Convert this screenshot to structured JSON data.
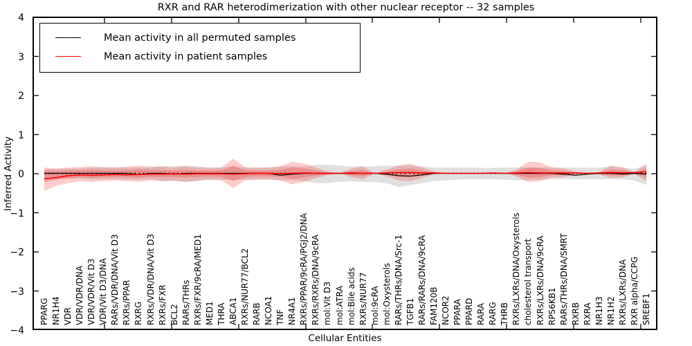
{
  "chart_data": {
    "type": "line",
    "title": "RXR and RAR heterodimerization with other nuclear receptor -- 32 samples",
    "xlabel": "Cellular Entities",
    "ylabel": "Inferred Activity",
    "ylim": [
      -4,
      4
    ],
    "ytick_labels": [
      "4",
      "3",
      "2",
      "1",
      "0",
      "−1",
      "−2",
      "−3",
      "−4"
    ],
    "grid": false,
    "legend_position": "upper left",
    "categories": [
      "PPARG",
      "NR1H4",
      "VDR",
      "VDR/VDR/DNA",
      "VDR/VDR/Vit D3",
      "VDR/Vit D3/DNA",
      "RARs/VDR/DNA/Vit D3",
      "RXRs/PPAR",
      "RXRG",
      "RXRs/VDR/DNA/Vit D3",
      "RXRs/FXR",
      "BCL2",
      "RARs/THRs",
      "RXRs/FXR/9cRA/MED1",
      "MED1",
      "THRA",
      "ABCA1",
      "RXRs/NUR77/BCL2",
      "RARB",
      "NCOA1",
      "TNF",
      "NR4A1",
      "RXRs/PPAR/9cRA/PGJ2/DNA",
      "RXRs/RXRs/DNA/9cRA",
      "mol:Vit D3",
      "mol:ATRA",
      "mol:Bile acids",
      "RXRs/NUR77",
      "mol:9cRA",
      "mol:Oxysterols",
      "RARs/THRs/DNA/Src-1",
      "TGFB1",
      "RARs/RARs/DNA/9cRA",
      "FAM120B",
      "NCOR2",
      "PPARA",
      "PPARD",
      "RARA",
      "RARG",
      "THRB",
      "RXRs/LXRs/DNA/Oxysterols",
      "cholesterol transport",
      "RXRs/LXRs/DNA/9cRA",
      "RPS6KB1",
      "RARs/THRs/DNA/SMRT",
      "RXRB",
      "RXRA",
      "NR1H3",
      "NR1H2",
      "RXRs/LXRs/DNA",
      "RXR alpha/CCPG",
      "SREBF1"
    ],
    "series": [
      {
        "name": "Mean activity in all permuted samples",
        "color": "#000000",
        "values": [
          0,
          0,
          0,
          0,
          0,
          0,
          0,
          0,
          -0.03,
          0,
          0,
          -0.02,
          0,
          0,
          0,
          0,
          0,
          0,
          0,
          0,
          -0.05,
          -0.02,
          0,
          0,
          0,
          0,
          0,
          0,
          0,
          -0.02,
          -0.06,
          -0.07,
          -0.04,
          0,
          0,
          0,
          0,
          0,
          0,
          0,
          0,
          0,
          0,
          0,
          -0.02,
          -0.05,
          -0.02,
          0,
          0,
          -0.02,
          0,
          -0.02
        ]
      },
      {
        "name": "Mean activity in patient samples",
        "color": "#ff0000",
        "values": [
          -0.14,
          -0.11,
          -0.06,
          -0.04,
          -0.05,
          -0.04,
          -0.03,
          -0.04,
          -0.03,
          -0.02,
          -0.02,
          -0.01,
          -0.02,
          -0.01,
          -0.01,
          -0.01,
          -0.02,
          -0.01,
          0,
          0,
          -0.01,
          0,
          0.01,
          0,
          0,
          0,
          0.01,
          0,
          0,
          0.01,
          0.02,
          0.02,
          0.01,
          0.01,
          0,
          0,
          0,
          0,
          0.01,
          0,
          0.01,
          0.02,
          0.01,
          0.01,
          0.01,
          0.01,
          0,
          0.01,
          0.02,
          0.01,
          0.02,
          0.04
        ]
      }
    ],
    "zero_reference_line": {
      "y": 0,
      "style": "dotted",
      "color": "#000000"
    },
    "bands": [
      {
        "name": "permuted-samples-range",
        "color": "rgba(0,0,0,0.12)",
        "core_scale": 0,
        "hi": [
          0.1,
          0.12,
          0.12,
          0.12,
          0.15,
          0.15,
          0.15,
          0.15,
          0.15,
          0.15,
          0.18,
          0.18,
          0.2,
          0.18,
          0.15,
          0.15,
          0.18,
          0.15,
          0.15,
          0.15,
          0.18,
          0.18,
          0.18,
          0.22,
          0.22,
          0.2,
          0.18,
          0.18,
          0.18,
          0.2,
          0.2,
          0.2,
          0.18,
          0.15,
          0.15,
          0.15,
          0.15,
          0.14,
          0.14,
          0.15,
          0.15,
          0.15,
          0.15,
          0.15,
          0.15,
          0.15,
          0.14,
          0.15,
          0.18,
          0.15,
          0.12,
          0.2
        ],
        "lo": [
          -0.12,
          -0.14,
          -0.13,
          -0.13,
          -0.15,
          -0.15,
          -0.15,
          -0.16,
          -0.16,
          -0.15,
          -0.2,
          -0.2,
          -0.22,
          -0.2,
          -0.16,
          -0.16,
          -0.18,
          -0.16,
          -0.16,
          -0.16,
          -0.18,
          -0.18,
          -0.2,
          -0.25,
          -0.25,
          -0.22,
          -0.2,
          -0.22,
          -0.22,
          -0.25,
          -0.35,
          -0.3,
          -0.25,
          -0.2,
          -0.18,
          -0.16,
          -0.15,
          -0.15,
          -0.15,
          -0.16,
          -0.18,
          -0.18,
          -0.16,
          -0.15,
          -0.15,
          -0.15,
          -0.15,
          -0.15,
          -0.15,
          -0.15,
          -0.18,
          -0.3
        ]
      },
      {
        "name": "patient-samples-range",
        "color": "rgba(255,0,0,0.20)",
        "core_scale": 0.5,
        "hi": [
          0.15,
          0.12,
          0.15,
          0.16,
          0.18,
          0.16,
          0.15,
          0.17,
          0.2,
          0.17,
          0.18,
          0.15,
          0.18,
          0.15,
          0.14,
          0.15,
          0.38,
          0.16,
          0.14,
          0.15,
          0.18,
          0.3,
          0.25,
          0.15,
          0.05,
          0,
          0.12,
          0.18,
          0,
          0.1,
          0.2,
          0.25,
          0.15,
          0.05,
          0,
          0,
          0,
          0,
          0,
          0,
          0.1,
          0.3,
          0.28,
          0.15,
          0.12,
          0.05,
          0,
          0.04,
          0.2,
          0.15,
          0.03,
          0.25
        ],
        "lo": [
          -0.45,
          -0.32,
          -0.25,
          -0.2,
          -0.22,
          -0.2,
          -0.18,
          -0.2,
          -0.22,
          -0.18,
          -0.2,
          -0.18,
          -0.22,
          -0.18,
          -0.16,
          -0.18,
          -0.38,
          -0.18,
          -0.16,
          -0.15,
          -0.18,
          -0.28,
          -0.22,
          -0.12,
          -0.05,
          0,
          -0.1,
          -0.15,
          0,
          -0.08,
          -0.18,
          -0.2,
          -0.12,
          -0.03,
          0,
          0,
          0,
          0,
          0,
          0,
          -0.08,
          -0.22,
          -0.2,
          -0.1,
          -0.1,
          -0.04,
          0,
          -0.03,
          -0.12,
          -0.1,
          -0.02,
          -0.2
        ]
      }
    ],
    "spine_color": "#000000"
  }
}
